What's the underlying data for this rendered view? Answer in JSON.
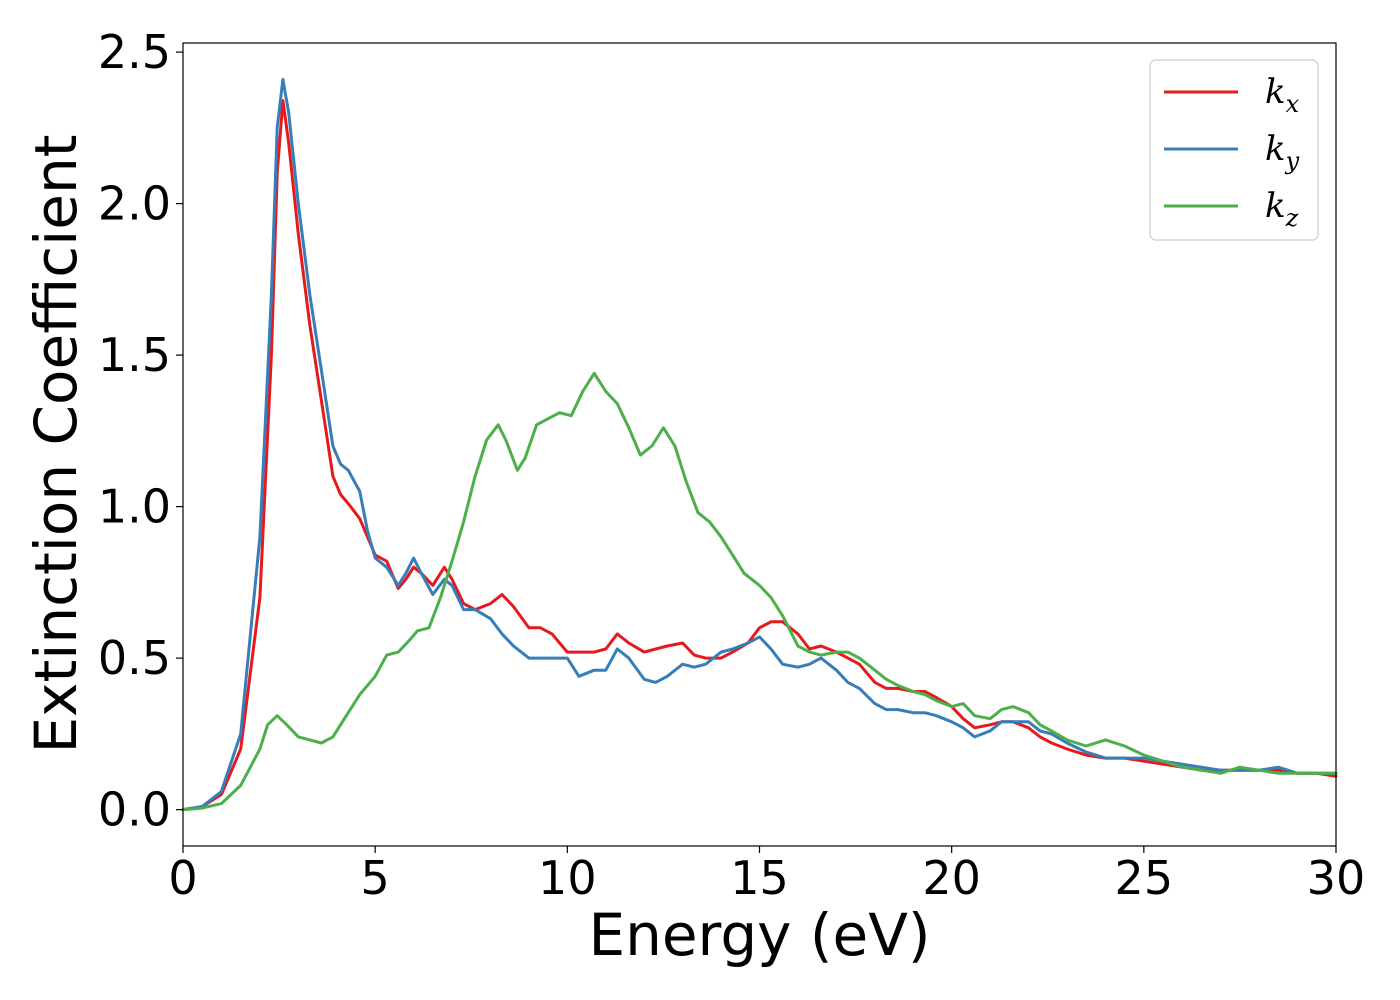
{
  "chart_data": {
    "type": "line",
    "xlabel": "Energy (eV)",
    "ylabel": "Extinction Coefficient",
    "xlim": [
      0,
      30
    ],
    "ylim": [
      -0.12,
      2.53
    ],
    "xticks": [
      0,
      5,
      10,
      15,
      20,
      25,
      30
    ],
    "yticks": [
      0.0,
      0.5,
      1.0,
      1.5,
      2.0,
      2.5
    ],
    "xtick_labels": [
      "0",
      "5",
      "10",
      "15",
      "20",
      "25",
      "30"
    ],
    "ytick_labels": [
      "0.0",
      "0.5",
      "1.0",
      "1.5",
      "2.0",
      "2.5"
    ],
    "grid": false,
    "legend_position": "top-right",
    "series": [
      {
        "name": "k_x",
        "label_base": "k",
        "label_sub": "x",
        "color": "#e41a1c",
        "x": [
          0,
          0.5,
          1.0,
          1.5,
          2.0,
          2.3,
          2.45,
          2.6,
          2.75,
          3.0,
          3.3,
          3.6,
          3.9,
          4.1,
          4.3,
          4.6,
          4.8,
          5.0,
          5.3,
          5.6,
          5.8,
          6.0,
          6.2,
          6.5,
          6.8,
          7.0,
          7.3,
          7.6,
          8.0,
          8.3,
          8.6,
          9.0,
          9.3,
          9.6,
          10.0,
          10.3,
          10.7,
          11.0,
          11.3,
          11.6,
          12.0,
          12.3,
          12.6,
          13.0,
          13.3,
          13.6,
          14.0,
          14.3,
          14.7,
          15.0,
          15.3,
          15.6,
          16.0,
          16.3,
          16.6,
          17.0,
          17.3,
          17.6,
          18.0,
          18.3,
          18.6,
          19.0,
          19.3,
          19.6,
          20.0,
          20.3,
          20.6,
          21.0,
          21.3,
          21.6,
          22.0,
          22.3,
          22.6,
          23.0,
          23.5,
          24.0,
          24.5,
          25.0,
          25.5,
          26.0,
          26.5,
          27.0,
          27.5,
          28.0,
          28.5,
          29.0,
          29.5,
          30.0
        ],
        "y": [
          0.0,
          0.01,
          0.05,
          0.2,
          0.7,
          1.5,
          2.1,
          2.34,
          2.2,
          1.9,
          1.6,
          1.35,
          1.1,
          1.04,
          1.01,
          0.96,
          0.9,
          0.84,
          0.82,
          0.73,
          0.76,
          0.8,
          0.78,
          0.74,
          0.8,
          0.76,
          0.68,
          0.66,
          0.68,
          0.71,
          0.67,
          0.6,
          0.6,
          0.58,
          0.52,
          0.52,
          0.52,
          0.53,
          0.58,
          0.55,
          0.52,
          0.53,
          0.54,
          0.55,
          0.51,
          0.5,
          0.5,
          0.52,
          0.55,
          0.6,
          0.62,
          0.62,
          0.58,
          0.53,
          0.54,
          0.52,
          0.5,
          0.48,
          0.42,
          0.4,
          0.4,
          0.39,
          0.39,
          0.37,
          0.34,
          0.3,
          0.27,
          0.28,
          0.29,
          0.29,
          0.27,
          0.24,
          0.22,
          0.2,
          0.18,
          0.17,
          0.17,
          0.16,
          0.15,
          0.14,
          0.13,
          0.13,
          0.13,
          0.13,
          0.13,
          0.12,
          0.12,
          0.11
        ]
      },
      {
        "name": "k_y",
        "label_base": "k",
        "label_sub": "y",
        "color": "#377eb8",
        "x": [
          0,
          0.5,
          1.0,
          1.5,
          2.0,
          2.3,
          2.45,
          2.6,
          2.75,
          3.0,
          3.3,
          3.6,
          3.9,
          4.1,
          4.3,
          4.6,
          4.8,
          5.0,
          5.3,
          5.6,
          5.8,
          6.0,
          6.2,
          6.5,
          6.8,
          7.0,
          7.3,
          7.6,
          8.0,
          8.3,
          8.6,
          9.0,
          9.3,
          9.6,
          10.0,
          10.3,
          10.7,
          11.0,
          11.3,
          11.6,
          12.0,
          12.3,
          12.6,
          13.0,
          13.3,
          13.6,
          14.0,
          14.3,
          14.7,
          15.0,
          15.3,
          15.6,
          16.0,
          16.3,
          16.6,
          17.0,
          17.3,
          17.6,
          18.0,
          18.3,
          18.6,
          19.0,
          19.3,
          19.6,
          20.0,
          20.3,
          20.6,
          21.0,
          21.3,
          21.6,
          22.0,
          22.3,
          22.6,
          23.0,
          23.5,
          24.0,
          24.5,
          25.0,
          25.5,
          26.0,
          26.5,
          27.0,
          27.5,
          28.0,
          28.5,
          29.0,
          29.5,
          30.0
        ],
        "y": [
          0.0,
          0.01,
          0.06,
          0.25,
          0.9,
          1.7,
          2.25,
          2.41,
          2.3,
          2.0,
          1.7,
          1.45,
          1.2,
          1.14,
          1.12,
          1.05,
          0.92,
          0.83,
          0.8,
          0.74,
          0.78,
          0.83,
          0.78,
          0.71,
          0.76,
          0.74,
          0.66,
          0.66,
          0.63,
          0.58,
          0.54,
          0.5,
          0.5,
          0.5,
          0.5,
          0.44,
          0.46,
          0.46,
          0.53,
          0.5,
          0.43,
          0.42,
          0.44,
          0.48,
          0.47,
          0.48,
          0.52,
          0.53,
          0.55,
          0.57,
          0.53,
          0.48,
          0.47,
          0.48,
          0.5,
          0.46,
          0.42,
          0.4,
          0.35,
          0.33,
          0.33,
          0.32,
          0.32,
          0.31,
          0.29,
          0.27,
          0.24,
          0.26,
          0.29,
          0.29,
          0.29,
          0.26,
          0.25,
          0.22,
          0.19,
          0.17,
          0.17,
          0.17,
          0.16,
          0.15,
          0.14,
          0.13,
          0.13,
          0.13,
          0.14,
          0.12,
          0.12,
          0.12
        ]
      },
      {
        "name": "k_z",
        "label_base": "k",
        "label_sub": "z",
        "color": "#4daf4a",
        "x": [
          0,
          0.5,
          1.0,
          1.5,
          2.0,
          2.2,
          2.45,
          2.7,
          3.0,
          3.3,
          3.6,
          3.9,
          4.2,
          4.6,
          5.0,
          5.3,
          5.6,
          5.9,
          6.1,
          6.4,
          6.7,
          7.0,
          7.3,
          7.6,
          7.9,
          8.2,
          8.4,
          8.7,
          8.9,
          9.2,
          9.5,
          9.8,
          10.1,
          10.4,
          10.7,
          11.0,
          11.3,
          11.6,
          11.9,
          12.2,
          12.5,
          12.8,
          13.1,
          13.4,
          13.7,
          14.0,
          14.3,
          14.6,
          15.0,
          15.3,
          15.6,
          16.0,
          16.3,
          16.6,
          17.0,
          17.3,
          17.6,
          18.0,
          18.3,
          18.6,
          19.0,
          19.3,
          19.6,
          20.0,
          20.3,
          20.6,
          21.0,
          21.3,
          21.6,
          22.0,
          22.3,
          22.6,
          23.0,
          23.5,
          24.0,
          24.5,
          25.0,
          25.5,
          26.0,
          26.5,
          27.0,
          27.5,
          28.0,
          28.5,
          29.0,
          29.5,
          30.0
        ],
        "y": [
          0.0,
          0.005,
          0.02,
          0.08,
          0.2,
          0.28,
          0.31,
          0.28,
          0.24,
          0.23,
          0.22,
          0.24,
          0.3,
          0.38,
          0.44,
          0.51,
          0.52,
          0.56,
          0.59,
          0.6,
          0.7,
          0.82,
          0.95,
          1.1,
          1.22,
          1.27,
          1.22,
          1.12,
          1.16,
          1.27,
          1.29,
          1.31,
          1.3,
          1.38,
          1.44,
          1.38,
          1.34,
          1.26,
          1.17,
          1.2,
          1.26,
          1.2,
          1.08,
          0.98,
          0.95,
          0.9,
          0.84,
          0.78,
          0.74,
          0.7,
          0.64,
          0.54,
          0.52,
          0.51,
          0.52,
          0.52,
          0.5,
          0.46,
          0.43,
          0.41,
          0.39,
          0.38,
          0.36,
          0.34,
          0.35,
          0.31,
          0.3,
          0.33,
          0.34,
          0.32,
          0.28,
          0.26,
          0.23,
          0.21,
          0.23,
          0.21,
          0.18,
          0.16,
          0.14,
          0.13,
          0.12,
          0.14,
          0.13,
          0.12,
          0.12,
          0.12,
          0.12
        ]
      }
    ]
  }
}
